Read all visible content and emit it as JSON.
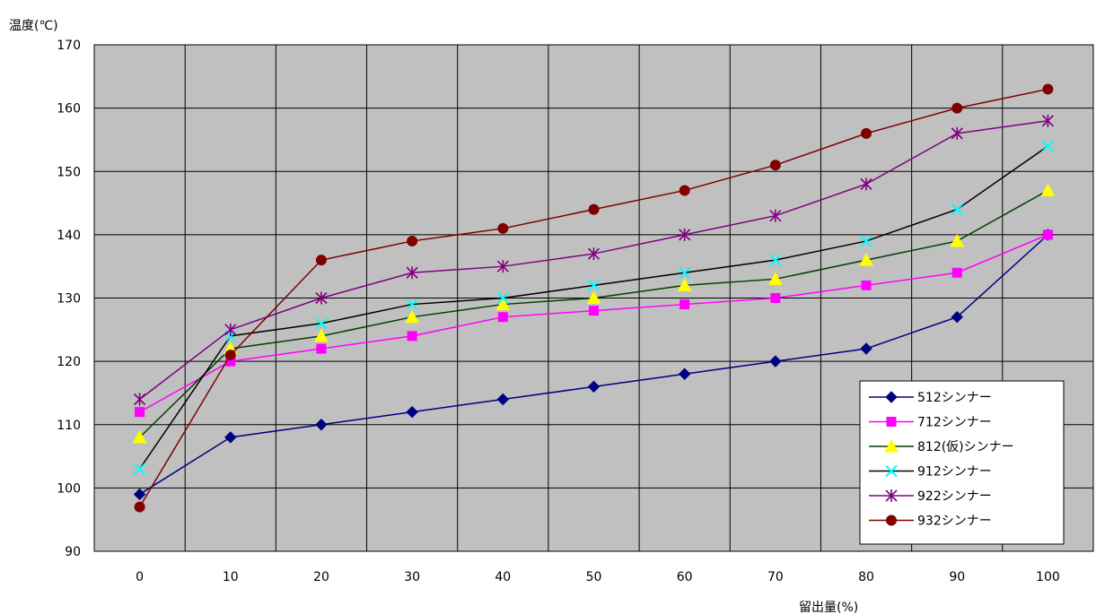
{
  "chart_data": {
    "type": "line",
    "ylabel": "温度(℃)",
    "xlabel": "留出量(%)",
    "x": [
      0,
      10,
      20,
      30,
      40,
      50,
      60,
      70,
      80,
      90,
      100
    ],
    "xlim": [
      -5,
      105
    ],
    "ylim": [
      90,
      170
    ],
    "yticks": [
      90,
      100,
      110,
      120,
      130,
      140,
      150,
      160,
      170
    ],
    "grid": true,
    "plot_background": "#c0c0c0",
    "legend_position": "bottom-right",
    "series": [
      {
        "name": "512シンナー",
        "color": "#000080",
        "marker": "diamond",
        "values": [
          99,
          108,
          110,
          112,
          114,
          116,
          118,
          120,
          122,
          127,
          140
        ]
      },
      {
        "name": "712シンナー",
        "color": "#ff00ff",
        "marker": "square",
        "values": [
          112,
          120,
          122,
          124,
          127,
          128,
          129,
          130,
          132,
          134,
          140
        ]
      },
      {
        "name": "812(仮)シンナー",
        "color": "#ffff00",
        "line_color": "#004000",
        "marker": "triangle",
        "values": [
          108,
          122,
          124,
          127,
          129,
          130,
          132,
          133,
          136,
          139,
          147
        ]
      },
      {
        "name": "912シンナー",
        "color": "#00ffff",
        "line_color": "#000000",
        "marker": "x",
        "values": [
          103,
          124,
          126,
          129,
          130,
          132,
          134,
          136,
          139,
          144,
          154
        ]
      },
      {
        "name": "922シンナー",
        "color": "#800080",
        "marker": "star",
        "values": [
          114,
          125,
          130,
          134,
          135,
          137,
          140,
          143,
          148,
          156,
          158
        ]
      },
      {
        "name": "932シンナー",
        "color": "#800000",
        "marker": "circle",
        "values": [
          97,
          121,
          136,
          139,
          141,
          144,
          147,
          151,
          156,
          160,
          163
        ]
      }
    ]
  }
}
